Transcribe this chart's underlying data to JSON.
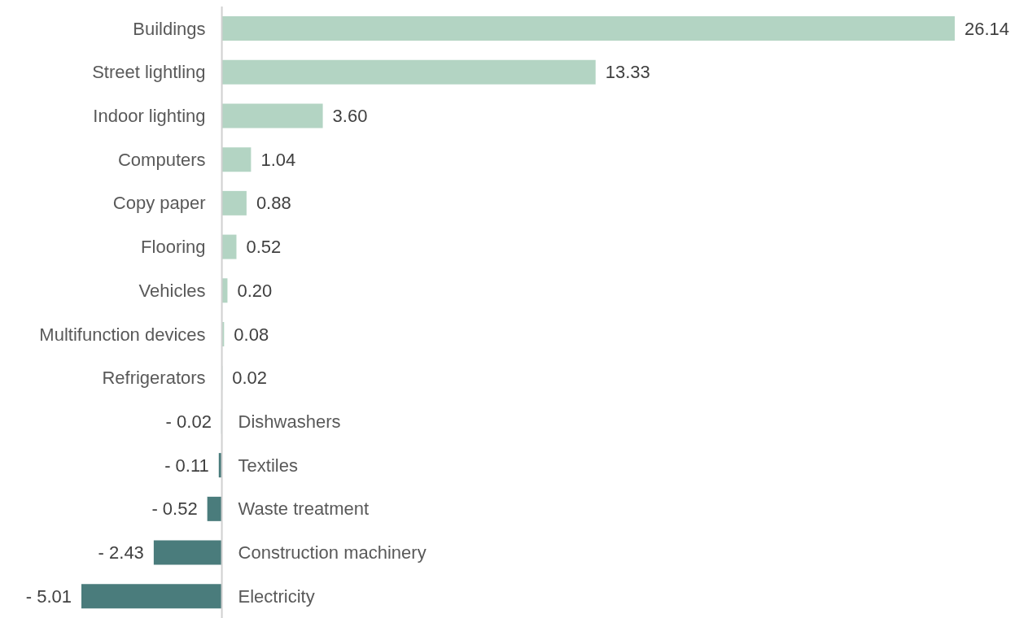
{
  "chart_data": {
    "type": "bar",
    "orientation": "horizontal",
    "categories": [
      "Buildings",
      "Street lightling",
      "Indoor lighting",
      "Computers",
      "Copy paper",
      "Flooring",
      "Vehicles",
      "Multifunction devices",
      "Refrigerators",
      "Dishwashers",
      "Textiles",
      "Waste treatment",
      "Construction machinery",
      "Electricity"
    ],
    "values": [
      26.14,
      13.33,
      3.6,
      1.04,
      0.88,
      0.52,
      0.2,
      0.08,
      0.02,
      -0.02,
      -0.11,
      -0.52,
      -2.43,
      -5.01
    ],
    "value_labels": [
      "26.14",
      "13.33",
      "3.60",
      "1.04",
      "0.88",
      "0.52",
      "0.20",
      "0.08",
      "0.02",
      "- 0.02",
      "- 0.11",
      "- 0.52",
      "- 2.43",
      "- 5.01"
    ],
    "colors": [
      "#b3d4c3",
      "#b3d4c3",
      "#b3d4c3",
      "#b3d4c3",
      "#b3d4c3",
      "#b3d4c3",
      "#b3d4c3",
      "#b3d4c3",
      "#b3d4c3",
      "#4a7c7c",
      "#4a7c7c",
      "#4a7c7c",
      "#4a7c7c",
      "#4a7c7c"
    ],
    "grid": false,
    "legend": false
  }
}
